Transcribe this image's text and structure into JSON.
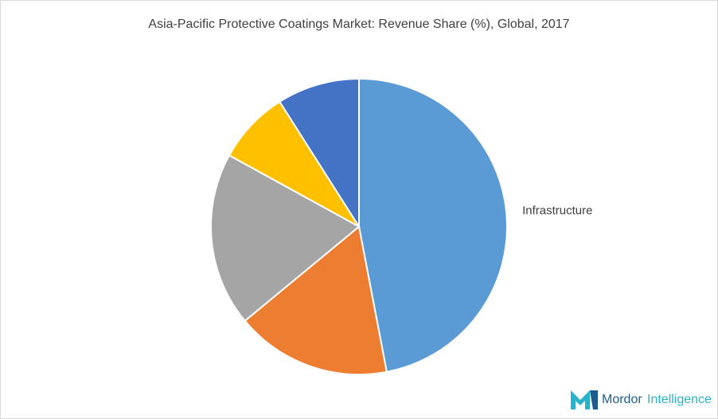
{
  "chart_data": {
    "type": "pie",
    "title": "Asia-Pacific Protective Coatings Market: Revenue Share (%), Global, 2017",
    "categories": [
      "Infrastructure",
      null,
      null,
      null,
      null
    ],
    "values": [
      47,
      17,
      19,
      8,
      9
    ],
    "colors": [
      "#5b9bd5",
      "#ed7d31",
      "#a5a5a5",
      "#ffc000",
      "#4472c4"
    ]
  },
  "logo": {
    "word1": "Mordor",
    "word2": "Intelligence"
  }
}
